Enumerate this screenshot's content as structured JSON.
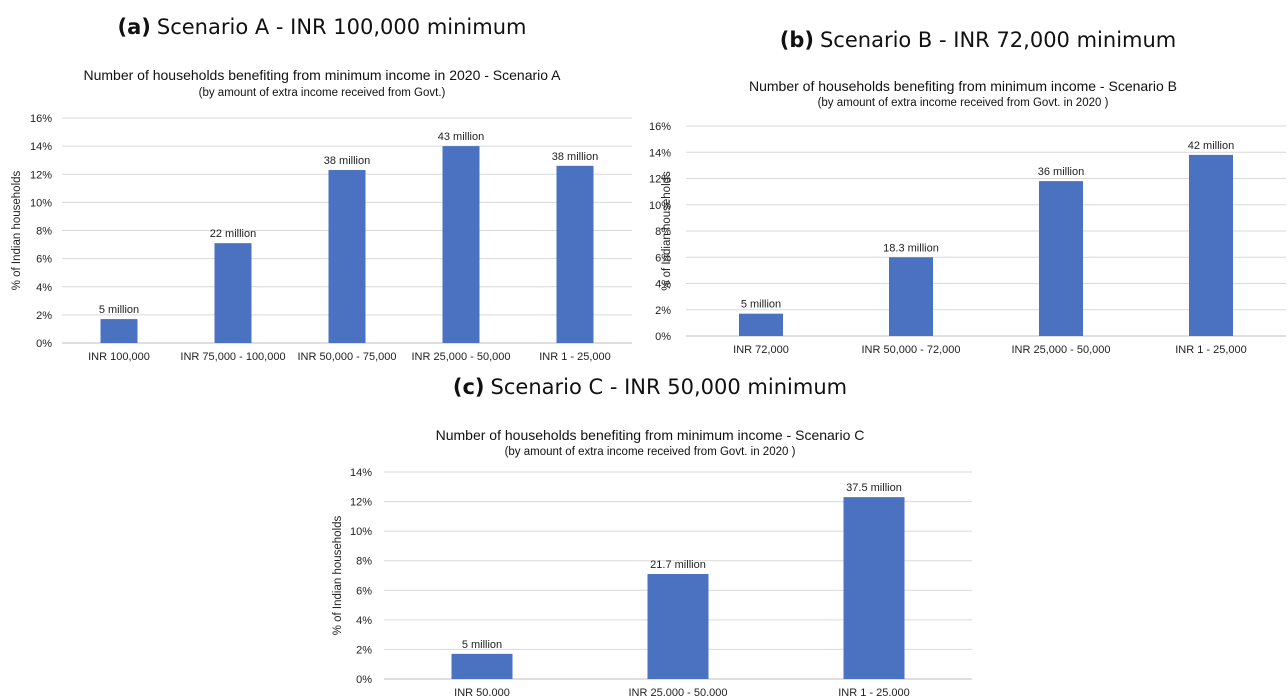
{
  "chart_data": [
    {
      "type": "bar",
      "panel_label": "(a)",
      "panel_heading": "Scenario A - INR 100,000 minimum",
      "title": "Number of households benefiting from minimum income in 2020 - Scenario A",
      "subtitle": "(by amount of extra income received from Govt.)",
      "ylabel": "% of Indian households",
      "xlabel": "",
      "ylim": [
        0,
        16
      ],
      "yticks": [
        "0%",
        "2%",
        "4%",
        "6%",
        "8%",
        "10%",
        "12%",
        "14%",
        "16%"
      ],
      "grid": true,
      "legend": "none",
      "bar_color": "#4A72C0",
      "categories": [
        "INR 100,000",
        "INR 75,000 - 100,000",
        "INR 50,000 - 75,000",
        "INR 25,000 - 50,000",
        "INR 1 - 25,000"
      ],
      "values": [
        1.7,
        7.1,
        12.3,
        14.0,
        12.6
      ],
      "data_labels": [
        "5 million",
        "22 million",
        "38 million",
        "43 million",
        "38 million"
      ]
    },
    {
      "type": "bar",
      "panel_label": "(b)",
      "panel_heading": "Scenario B - INR 72,000 minimum",
      "title": "Number of households benefiting from minimum income - Scenario B",
      "subtitle": "(by amount of extra income received from Govt. in 2020 )",
      "ylabel": "% of Indian households",
      "xlabel": "",
      "ylim": [
        0,
        16
      ],
      "yticks": [
        "0%",
        "2%",
        "4%",
        "6%",
        "8%",
        "10%",
        "12%",
        "14%",
        "16%"
      ],
      "grid": true,
      "legend": "none",
      "bar_color": "#4A72C0",
      "categories": [
        "INR 72,000",
        "INR 50,000 - 72,000",
        "INR 25,000 - 50,000",
        "INR 1 - 25,000"
      ],
      "values": [
        1.7,
        6.0,
        11.8,
        13.8
      ],
      "data_labels": [
        "5 million",
        "18.3 million",
        "36 million",
        "42 million"
      ]
    },
    {
      "type": "bar",
      "panel_label": "(c)",
      "panel_heading": "Scenario C - INR 50,000 minimum",
      "title": "Number of households benefiting from minimum income - Scenario C",
      "subtitle": "(by amount of extra income received from Govt. in 2020 )",
      "ylabel": "% of Indian households",
      "xlabel": "",
      "ylim": [
        0,
        14
      ],
      "yticks": [
        "0%",
        "2%",
        "4%",
        "6%",
        "8%",
        "10%",
        "12%",
        "14%"
      ],
      "grid": true,
      "legend": "none",
      "bar_color": "#4A72C0",
      "categories": [
        "INR 50,000",
        "INR 25,000 - 50,000",
        "INR 1 - 25,000"
      ],
      "values": [
        1.7,
        7.1,
        12.3
      ],
      "data_labels": [
        "5 million",
        "21.7 million",
        "37.5 million"
      ]
    }
  ]
}
